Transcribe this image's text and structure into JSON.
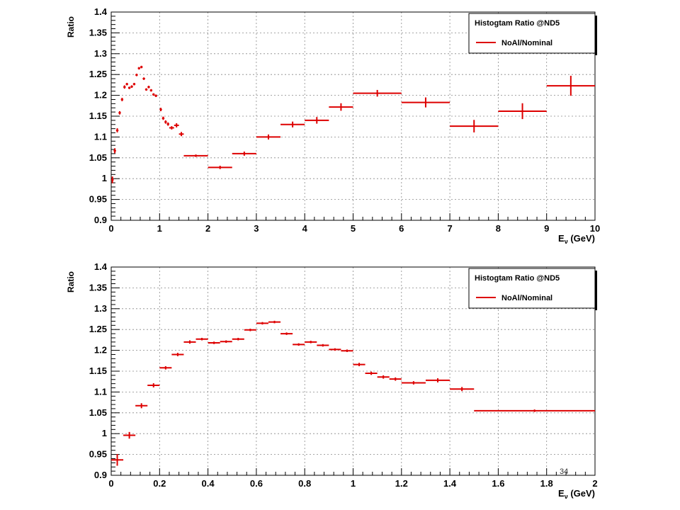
{
  "page": {
    "page_number": "34"
  },
  "colors": {
    "series": "#dd0000",
    "grid": "#888888",
    "axis": "#000000"
  },
  "chart_data": [
    {
      "type": "scatter",
      "title": "",
      "xlabel": "E",
      "xlabel_subscript": "ν",
      "xlabel_unit": "(GeV)",
      "ylabel": "Ratio",
      "xlim": [
        0,
        10
      ],
      "ylim": [
        0.9,
        1.4
      ],
      "x_ticks": [
        "0",
        "1",
        "2",
        "3",
        "4",
        "5",
        "6",
        "7",
        "8",
        "9",
        "10"
      ],
      "y_ticks": [
        "0.9",
        "0.95",
        "1",
        "1.05",
        "1.1",
        "1.15",
        "1.2",
        "1.25",
        "1.3",
        "1.35",
        "1.4"
      ],
      "grid": true,
      "legend": {
        "title": "Histogtam Ratio @ND5",
        "entries": [
          "NoAl/Nominal"
        ],
        "position": "top-right"
      },
      "series": [
        {
          "name": "NoAl/Nominal",
          "points": [
            {
              "x": 0.025,
              "y": 0.997,
              "xerr": 0.025,
              "yerr": 0.008
            },
            {
              "x": 0.075,
              "y": 1.067,
              "xerr": 0.025,
              "yerr": 0.006
            },
            {
              "x": 0.125,
              "y": 1.116,
              "xerr": 0.025,
              "yerr": 0.005
            },
            {
              "x": 0.175,
              "y": 1.158,
              "xerr": 0.025,
              "yerr": 0.004
            },
            {
              "x": 0.225,
              "y": 1.19,
              "xerr": 0.025,
              "yerr": 0.004
            },
            {
              "x": 0.275,
              "y": 1.22,
              "xerr": 0.025,
              "yerr": 0.004
            },
            {
              "x": 0.325,
              "y": 1.227,
              "xerr": 0.025,
              "yerr": 0.003
            },
            {
              "x": 0.375,
              "y": 1.218,
              "xerr": 0.025,
              "yerr": 0.003
            },
            {
              "x": 0.425,
              "y": 1.221,
              "xerr": 0.025,
              "yerr": 0.003
            },
            {
              "x": 0.475,
              "y": 1.227,
              "xerr": 0.025,
              "yerr": 0.003
            },
            {
              "x": 0.525,
              "y": 1.249,
              "xerr": 0.025,
              "yerr": 0.003
            },
            {
              "x": 0.575,
              "y": 1.265,
              "xerr": 0.025,
              "yerr": 0.003
            },
            {
              "x": 0.625,
              "y": 1.268,
              "xerr": 0.025,
              "yerr": 0.003
            },
            {
              "x": 0.675,
              "y": 1.24,
              "xerr": 0.025,
              "yerr": 0.003
            },
            {
              "x": 0.725,
              "y": 1.214,
              "xerr": 0.025,
              "yerr": 0.003
            },
            {
              "x": 0.775,
              "y": 1.22,
              "xerr": 0.025,
              "yerr": 0.003
            },
            {
              "x": 0.825,
              "y": 1.212,
              "xerr": 0.025,
              "yerr": 0.003
            },
            {
              "x": 0.875,
              "y": 1.202,
              "xerr": 0.025,
              "yerr": 0.003
            },
            {
              "x": 0.925,
              "y": 1.199,
              "xerr": 0.025,
              "yerr": 0.003
            },
            {
              "x": 1.025,
              "y": 1.166,
              "xerr": 0.025,
              "yerr": 0.004
            },
            {
              "x": 1.075,
              "y": 1.145,
              "xerr": 0.025,
              "yerr": 0.004
            },
            {
              "x": 1.125,
              "y": 1.136,
              "xerr": 0.025,
              "yerr": 0.004
            },
            {
              "x": 1.175,
              "y": 1.131,
              "xerr": 0.025,
              "yerr": 0.004
            },
            {
              "x": 1.25,
              "y": 1.122,
              "xerr": 0.05,
              "yerr": 0.004
            },
            {
              "x": 1.35,
              "y": 1.128,
              "xerr": 0.05,
              "yerr": 0.005
            },
            {
              "x": 1.45,
              "y": 1.107,
              "xerr": 0.05,
              "yerr": 0.005
            },
            {
              "x": 1.75,
              "y": 1.055,
              "xerr": 0.25,
              "yerr": 0.003
            },
            {
              "x": 2.25,
              "y": 1.027,
              "xerr": 0.25,
              "yerr": 0.004
            },
            {
              "x": 2.75,
              "y": 1.06,
              "xerr": 0.25,
              "yerr": 0.005
            },
            {
              "x": 3.25,
              "y": 1.1,
              "xerr": 0.25,
              "yerr": 0.006
            },
            {
              "x": 3.75,
              "y": 1.13,
              "xerr": 0.25,
              "yerr": 0.007
            },
            {
              "x": 4.25,
              "y": 1.14,
              "xerr": 0.25,
              "yerr": 0.008
            },
            {
              "x": 4.75,
              "y": 1.172,
              "xerr": 0.25,
              "yerr": 0.009
            },
            {
              "x": 5.5,
              "y": 1.205,
              "xerr": 0.5,
              "yerr": 0.008
            },
            {
              "x": 6.5,
              "y": 1.183,
              "xerr": 0.5,
              "yerr": 0.012
            },
            {
              "x": 7.5,
              "y": 1.126,
              "xerr": 0.5,
              "yerr": 0.015
            },
            {
              "x": 8.5,
              "y": 1.162,
              "xerr": 0.5,
              "yerr": 0.019
            },
            {
              "x": 9.5,
              "y": 1.223,
              "xerr": 0.5,
              "yerr": 0.024
            }
          ]
        }
      ]
    },
    {
      "type": "scatter",
      "title": "",
      "xlabel": "E",
      "xlabel_subscript": "ν",
      "xlabel_unit": "(GeV)",
      "ylabel": "Ratio",
      "xlim": [
        0,
        2
      ],
      "ylim": [
        0.9,
        1.4
      ],
      "x_ticks": [
        "0",
        "0.2",
        "0.4",
        "0.6",
        "0.8",
        "1",
        "1.2",
        "1.4",
        "1.6",
        "1.8",
        "2"
      ],
      "y_ticks": [
        "0.9",
        "0.95",
        "1",
        "1.05",
        "1.1",
        "1.15",
        "1.2",
        "1.25",
        "1.3",
        "1.35",
        "1.4"
      ],
      "grid": true,
      "legend": {
        "title": "Histogtam Ratio @ND5",
        "entries": [
          "NoAl/Nominal"
        ],
        "position": "top-right"
      },
      "series": [
        {
          "name": "NoAl/Nominal",
          "points": [
            {
              "x": 0.025,
              "y": 0.937,
              "xerr": 0.025,
              "yerr": 0.014
            },
            {
              "x": 0.075,
              "y": 0.996,
              "xerr": 0.025,
              "yerr": 0.008
            },
            {
              "x": 0.125,
              "y": 1.067,
              "xerr": 0.025,
              "yerr": 0.006
            },
            {
              "x": 0.175,
              "y": 1.116,
              "xerr": 0.025,
              "yerr": 0.005
            },
            {
              "x": 0.225,
              "y": 1.158,
              "xerr": 0.025,
              "yerr": 0.004
            },
            {
              "x": 0.275,
              "y": 1.19,
              "xerr": 0.025,
              "yerr": 0.004
            },
            {
              "x": 0.325,
              "y": 1.22,
              "xerr": 0.025,
              "yerr": 0.004
            },
            {
              "x": 0.375,
              "y": 1.227,
              "xerr": 0.025,
              "yerr": 0.003
            },
            {
              "x": 0.425,
              "y": 1.218,
              "xerr": 0.025,
              "yerr": 0.003
            },
            {
              "x": 0.475,
              "y": 1.221,
              "xerr": 0.025,
              "yerr": 0.003
            },
            {
              "x": 0.525,
              "y": 1.227,
              "xerr": 0.025,
              "yerr": 0.003
            },
            {
              "x": 0.575,
              "y": 1.249,
              "xerr": 0.025,
              "yerr": 0.003
            },
            {
              "x": 0.625,
              "y": 1.265,
              "xerr": 0.025,
              "yerr": 0.003
            },
            {
              "x": 0.675,
              "y": 1.268,
              "xerr": 0.025,
              "yerr": 0.003
            },
            {
              "x": 0.725,
              "y": 1.24,
              "xerr": 0.025,
              "yerr": 0.003
            },
            {
              "x": 0.775,
              "y": 1.214,
              "xerr": 0.025,
              "yerr": 0.003
            },
            {
              "x": 0.825,
              "y": 1.22,
              "xerr": 0.025,
              "yerr": 0.003
            },
            {
              "x": 0.875,
              "y": 1.212,
              "xerr": 0.025,
              "yerr": 0.003
            },
            {
              "x": 0.925,
              "y": 1.202,
              "xerr": 0.025,
              "yerr": 0.003
            },
            {
              "x": 0.975,
              "y": 1.199,
              "xerr": 0.025,
              "yerr": 0.003
            },
            {
              "x": 1.025,
              "y": 1.166,
              "xerr": 0.025,
              "yerr": 0.004
            },
            {
              "x": 1.075,
              "y": 1.145,
              "xerr": 0.025,
              "yerr": 0.004
            },
            {
              "x": 1.125,
              "y": 1.136,
              "xerr": 0.025,
              "yerr": 0.004
            },
            {
              "x": 1.175,
              "y": 1.131,
              "xerr": 0.025,
              "yerr": 0.004
            },
            {
              "x": 1.25,
              "y": 1.122,
              "xerr": 0.05,
              "yerr": 0.004
            },
            {
              "x": 1.35,
              "y": 1.128,
              "xerr": 0.05,
              "yerr": 0.005
            },
            {
              "x": 1.45,
              "y": 1.107,
              "xerr": 0.05,
              "yerr": 0.005
            },
            {
              "x": 1.75,
              "y": 1.055,
              "xerr": 0.25,
              "yerr": 0.003
            }
          ]
        }
      ]
    }
  ]
}
